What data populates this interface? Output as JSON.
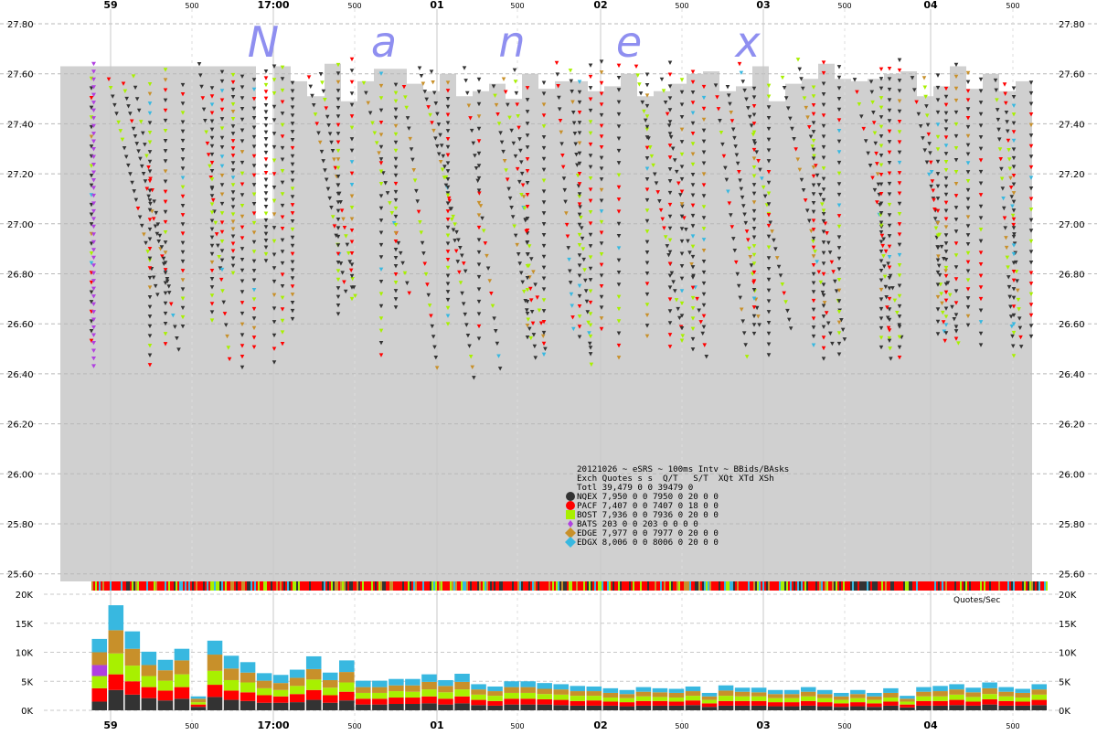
{
  "chart_data": {
    "type": "line",
    "title": "20121026 ~ eSRS ~ 100ms Intv ~ BBids/BAsks",
    "watermark": "Nanex",
    "time_axis": {
      "labels": [
        "59",
        "500",
        "17:00",
        "500",
        "01",
        "500",
        "02",
        "500",
        "03",
        "500",
        "04",
        "500"
      ],
      "major_flags": [
        true,
        false,
        true,
        false,
        true,
        false,
        true,
        false,
        true,
        false,
        true,
        false
      ]
    },
    "price_axis": {
      "ylim": [
        25.56,
        27.82
      ],
      "ticks": [
        "27.80",
        "27.60",
        "27.40",
        "27.20",
        "27.00",
        "26.80",
        "26.60",
        "26.40",
        "26.20",
        "26.00",
        "25.80",
        "25.60"
      ],
      "tick_values": [
        27.8,
        27.6,
        27.4,
        27.2,
        27.0,
        26.8,
        26.6,
        26.4,
        26.2,
        26.0,
        25.8,
        25.6
      ],
      "grid": true
    },
    "quote_rate_axis": {
      "label": "Quotes/Sec",
      "ylim": [
        0,
        20000
      ],
      "ticks": [
        "20K",
        "15K",
        "10K",
        "5K",
        "0K"
      ],
      "tick_values": [
        20000,
        15000,
        10000,
        5000,
        0
      ],
      "grid": true
    },
    "exchange_colors": {
      "NQEX": "#333333",
      "PACF": "#ff0000",
      "BOST": "#a8f000",
      "BATS": "#b040e0",
      "EDGE": "#c8902a",
      "EDGX": "#38b8e0"
    },
    "background_color": "#d0d0d0",
    "nbbo_ask_profile": [
      {
        "x": 66,
        "price": 27.63
      },
      {
        "x": 280,
        "price": 27.63
      },
      {
        "x": 280,
        "price": 27.02
      },
      {
        "x": 300,
        "price": 27.02
      },
      {
        "x": 300,
        "price": 27.63
      },
      {
        "x": 318,
        "price": 27.63
      },
      {
        "x": 318,
        "price": 27.57
      },
      {
        "x": 336,
        "price": 27.57
      },
      {
        "x": 336,
        "price": 27.51
      },
      {
        "x": 355,
        "price": 27.51
      },
      {
        "x": 355,
        "price": 27.64
      },
      {
        "x": 373,
        "price": 27.64
      },
      {
        "x": 373,
        "price": 27.49
      },
      {
        "x": 391,
        "price": 27.49
      },
      {
        "x": 391,
        "price": 27.57
      },
      {
        "x": 409,
        "price": 27.57
      },
      {
        "x": 409,
        "price": 27.62
      },
      {
        "x": 445,
        "price": 27.62
      },
      {
        "x": 445,
        "price": 27.56
      },
      {
        "x": 463,
        "price": 27.56
      },
      {
        "x": 463,
        "price": 27.53
      },
      {
        "x": 481,
        "price": 27.53
      },
      {
        "x": 481,
        "price": 27.6
      },
      {
        "x": 499,
        "price": 27.6
      },
      {
        "x": 499,
        "price": 27.51
      },
      {
        "x": 517,
        "price": 27.51
      },
      {
        "x": 517,
        "price": 27.53
      },
      {
        "x": 535,
        "price": 27.53
      },
      {
        "x": 535,
        "price": 27.56
      },
      {
        "x": 553,
        "price": 27.56
      },
      {
        "x": 553,
        "price": 27.5
      },
      {
        "x": 571,
        "price": 27.5
      },
      {
        "x": 571,
        "price": 27.6
      },
      {
        "x": 589,
        "price": 27.6
      },
      {
        "x": 589,
        "price": 27.54
      },
      {
        "x": 607,
        "price": 27.54
      },
      {
        "x": 607,
        "price": 27.57
      },
      {
        "x": 643,
        "price": 27.57
      },
      {
        "x": 643,
        "price": 27.53
      },
      {
        "x": 661,
        "price": 27.53
      },
      {
        "x": 661,
        "price": 27.55
      },
      {
        "x": 679,
        "price": 27.55
      },
      {
        "x": 679,
        "price": 27.6
      },
      {
        "x": 697,
        "price": 27.6
      },
      {
        "x": 697,
        "price": 27.51
      },
      {
        "x": 715,
        "price": 27.51
      },
      {
        "x": 715,
        "price": 27.53
      },
      {
        "x": 733,
        "price": 27.53
      },
      {
        "x": 733,
        "price": 27.56
      },
      {
        "x": 751,
        "price": 27.56
      },
      {
        "x": 751,
        "price": 27.6
      },
      {
        "x": 769,
        "price": 27.6
      },
      {
        "x": 769,
        "price": 27.61
      },
      {
        "x": 787,
        "price": 27.61
      },
      {
        "x": 787,
        "price": 27.53
      },
      {
        "x": 805,
        "price": 27.53
      },
      {
        "x": 805,
        "price": 27.55
      },
      {
        "x": 823,
        "price": 27.55
      },
      {
        "x": 823,
        "price": 27.63
      },
      {
        "x": 841,
        "price": 27.63
      },
      {
        "x": 841,
        "price": 27.49
      },
      {
        "x": 859,
        "price": 27.49
      },
      {
        "x": 859,
        "price": 27.56
      },
      {
        "x": 877,
        "price": 27.56
      },
      {
        "x": 877,
        "price": 27.58
      },
      {
        "x": 895,
        "price": 27.58
      },
      {
        "x": 895,
        "price": 27.64
      },
      {
        "x": 913,
        "price": 27.64
      },
      {
        "x": 913,
        "price": 27.58
      },
      {
        "x": 931,
        "price": 27.58
      },
      {
        "x": 931,
        "price": 27.57
      },
      {
        "x": 949,
        "price": 27.57
      },
      {
        "x": 949,
        "price": 27.58
      },
      {
        "x": 967,
        "price": 27.58
      },
      {
        "x": 967,
        "price": 27.6
      },
      {
        "x": 985,
        "price": 27.6
      },
      {
        "x": 985,
        "price": 27.61
      },
      {
        "x": 1003,
        "price": 27.61
      },
      {
        "x": 1003,
        "price": 27.51
      },
      {
        "x": 1021,
        "price": 27.51
      },
      {
        "x": 1021,
        "price": 27.55
      },
      {
        "x": 1039,
        "price": 27.55
      },
      {
        "x": 1039,
        "price": 27.63
      },
      {
        "x": 1057,
        "price": 27.63
      },
      {
        "x": 1057,
        "price": 27.54
      },
      {
        "x": 1075,
        "price": 27.54
      },
      {
        "x": 1075,
        "price": 27.6
      },
      {
        "x": 1093,
        "price": 27.6
      },
      {
        "x": 1093,
        "price": 27.53
      },
      {
        "x": 1111,
        "price": 27.53
      },
      {
        "x": 1111,
        "price": 27.57
      },
      {
        "x": 1129,
        "price": 27.57
      }
    ],
    "legend": {
      "header": "Exch Quotes s s  Q/T   S/T  XQt XTd XSh",
      "rows": [
        {
          "exch": "Totl",
          "text": "Totl 39,479 0 0 39479     0",
          "marker": "none"
        },
        {
          "exch": "NQEX",
          "text": "NQEX  7,950 0 0  7950     0  20   0   0",
          "marker": "circle"
        },
        {
          "exch": "PACF",
          "text": "PACF  7,407 0 0  7407     0  18   0   0",
          "marker": "circle"
        },
        {
          "exch": "BOST",
          "text": "BOST  7,936 0 0  7936     0  20   0   0",
          "marker": "square"
        },
        {
          "exch": "BATS",
          "text": "BATS    203 0 0   203     0   0   0   0",
          "marker": "diamond-small"
        },
        {
          "exch": "EDGE",
          "text": "EDGE  7,977 0 0  7977     0  20   0   0",
          "marker": "diamond"
        },
        {
          "exch": "EDGX",
          "text": "EDGX  8,006 0 0  8006     0  20   0   0",
          "marker": "diamond"
        }
      ]
    },
    "quote_rate_series": {
      "names": [
        "NQEX",
        "PACF",
        "BOST",
        "BATS",
        "EDGE",
        "EDGX"
      ],
      "bars": [
        [
          1500,
          2300,
          2100,
          1900,
          2200,
          2300
        ],
        [
          3500,
          2700,
          3600,
          0,
          4000,
          4300
        ],
        [
          2700,
          2300,
          2700,
          0,
          2900,
          3000
        ],
        [
          2100,
          1900,
          1900,
          0,
          1900,
          2300
        ],
        [
          1700,
          1700,
          1700,
          0,
          1800,
          1800
        ],
        [
          2000,
          2000,
          2200,
          0,
          2400,
          2000
        ],
        [
          600,
          400,
          400,
          0,
          600,
          400
        ],
        [
          2300,
          2100,
          2400,
          0,
          2800,
          2400
        ],
        [
          1800,
          1600,
          1800,
          0,
          2000,
          2200
        ],
        [
          1600,
          1500,
          1700,
          0,
          1700,
          1800
        ],
        [
          1300,
          1300,
          1200,
          0,
          1300,
          1300
        ],
        [
          1300,
          1100,
          1100,
          0,
          1200,
          1400
        ],
        [
          1400,
          1400,
          1400,
          0,
          1400,
          1400
        ],
        [
          1800,
          1700,
          1800,
          0,
          1800,
          2200
        ],
        [
          1300,
          1300,
          1300,
          0,
          1300,
          1300
        ],
        [
          1700,
          1500,
          1600,
          0,
          1800,
          2000
        ],
        [
          1000,
          1000,
          1000,
          0,
          1000,
          1100
        ],
        [
          1000,
          1000,
          1000,
          0,
          1000,
          1100
        ],
        [
          1100,
          1100,
          1100,
          0,
          1000,
          1100
        ],
        [
          1100,
          1100,
          1000,
          0,
          1100,
          1100
        ],
        [
          1200,
          1200,
          1200,
          0,
          1300,
          1300
        ],
        [
          1000,
          1000,
          1100,
          0,
          1100,
          1000
        ],
        [
          1200,
          1200,
          1200,
          0,
          1300,
          1400
        ],
        [
          900,
          900,
          900,
          0,
          900,
          900
        ],
        [
          800,
          800,
          900,
          0,
          800,
          800
        ],
        [
          1000,
          1000,
          1000,
          0,
          1000,
          1000
        ],
        [
          1000,
          1000,
          1000,
          0,
          1000,
          1000
        ],
        [
          1000,
          900,
          900,
          0,
          900,
          1000
        ],
        [
          900,
          900,
          900,
          0,
          900,
          900
        ],
        [
          800,
          800,
          900,
          0,
          800,
          900
        ],
        [
          800,
          900,
          800,
          0,
          800,
          800
        ],
        [
          800,
          700,
          700,
          0,
          800,
          800
        ],
        [
          700,
          700,
          700,
          0,
          700,
          700
        ],
        [
          800,
          800,
          800,
          0,
          800,
          800
        ],
        [
          800,
          800,
          700,
          0,
          800,
          700
        ],
        [
          800,
          700,
          700,
          0,
          800,
          700
        ],
        [
          900,
          800,
          800,
          0,
          800,
          800
        ],
        [
          600,
          600,
          600,
          0,
          600,
          600
        ],
        [
          800,
          800,
          900,
          0,
          900,
          900
        ],
        [
          800,
          800,
          800,
          0,
          800,
          700
        ],
        [
          800,
          800,
          800,
          0,
          700,
          800
        ],
        [
          700,
          700,
          700,
          0,
          700,
          700
        ],
        [
          700,
          700,
          700,
          0,
          700,
          700
        ],
        [
          800,
          800,
          800,
          0,
          800,
          800
        ],
        [
          700,
          700,
          700,
          0,
          700,
          700
        ],
        [
          600,
          600,
          600,
          0,
          600,
          600
        ],
        [
          700,
          700,
          700,
          0,
          700,
          700
        ],
        [
          600,
          600,
          600,
          0,
          600,
          600
        ],
        [
          800,
          700,
          700,
          0,
          800,
          800
        ],
        [
          500,
          500,
          500,
          0,
          500,
          500
        ],
        [
          800,
          800,
          800,
          0,
          800,
          800
        ],
        [
          800,
          800,
          800,
          0,
          900,
          900
        ],
        [
          900,
          900,
          900,
          0,
          900,
          900
        ],
        [
          800,
          700,
          800,
          0,
          800,
          800
        ],
        [
          1000,
          900,
          900,
          0,
          1000,
          1000
        ],
        [
          800,
          800,
          800,
          0,
          800,
          800
        ],
        [
          800,
          700,
          700,
          0,
          800,
          700
        ],
        [
          900,
          900,
          900,
          0,
          900,
          900
        ]
      ]
    }
  }
}
